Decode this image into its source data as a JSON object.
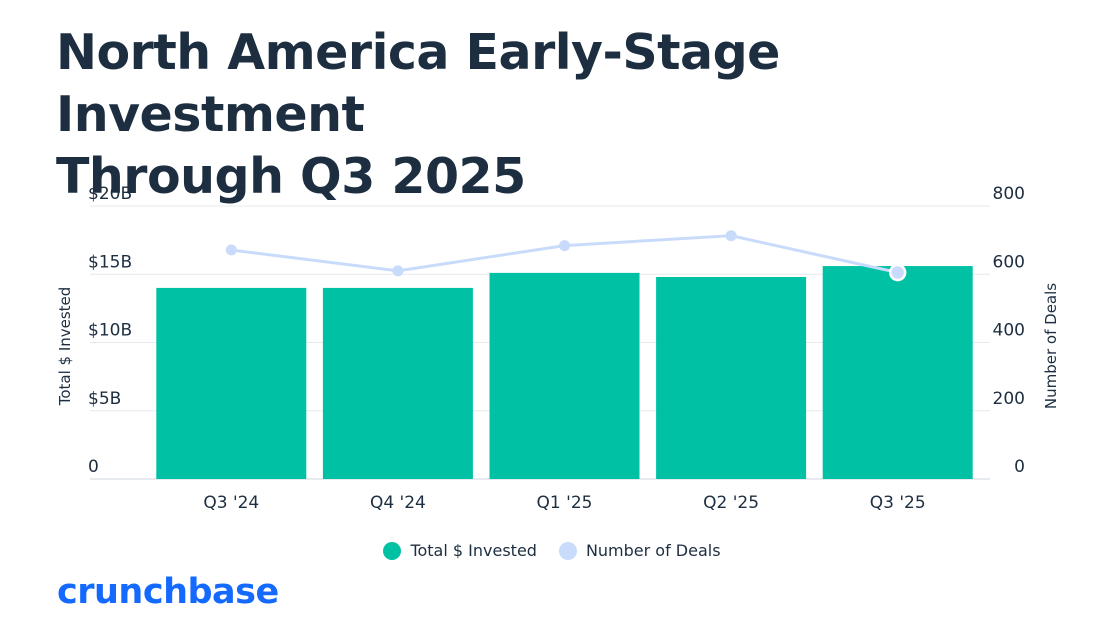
{
  "title": {
    "line1": "North America Early-Stage Investment",
    "line2": "Through Q3 2025"
  },
  "chart_data": {
    "type": "bar",
    "title": "North America Early-Stage Investment Through Q3 2025",
    "categories": [
      "Q3 '24",
      "Q4 '24",
      "Q1 '25",
      "Q2 '25",
      "Q3 '25"
    ],
    "series": [
      {
        "name": "Total $ Invested",
        "type": "bar",
        "axis": "left",
        "unit": "billion USD",
        "color": "#00c1a3",
        "values": [
          14.0,
          14.0,
          15.1,
          14.8,
          15.6
        ]
      },
      {
        "name": "Number of Deals",
        "type": "line",
        "axis": "right",
        "color": "#c9dbfb",
        "values": [
          671,
          610,
          684,
          713,
          605
        ]
      }
    ],
    "y_left": {
      "label": "Total $ Invested",
      "ylim": [
        0,
        20
      ],
      "ticks": [
        0,
        5,
        10,
        15,
        20
      ],
      "tick_labels": [
        "0",
        "$5B",
        "$10B",
        "$15B",
        "$20B"
      ]
    },
    "y_right": {
      "label": "Number of Deals",
      "ylim": [
        0,
        800
      ],
      "ticks": [
        0,
        200,
        400,
        600,
        800
      ],
      "tick_labels": [
        "0",
        "200",
        "400",
        "600",
        "800"
      ]
    },
    "grid": true,
    "legend_position": "bottom"
  },
  "legend": [
    {
      "label": "Total $ Invested",
      "color": "#00c1a3"
    },
    {
      "label": "Number of Deals",
      "color": "#c9dbfb"
    }
  ],
  "brand": {
    "logo_text": "crunchbase",
    "color": "#146aff"
  }
}
